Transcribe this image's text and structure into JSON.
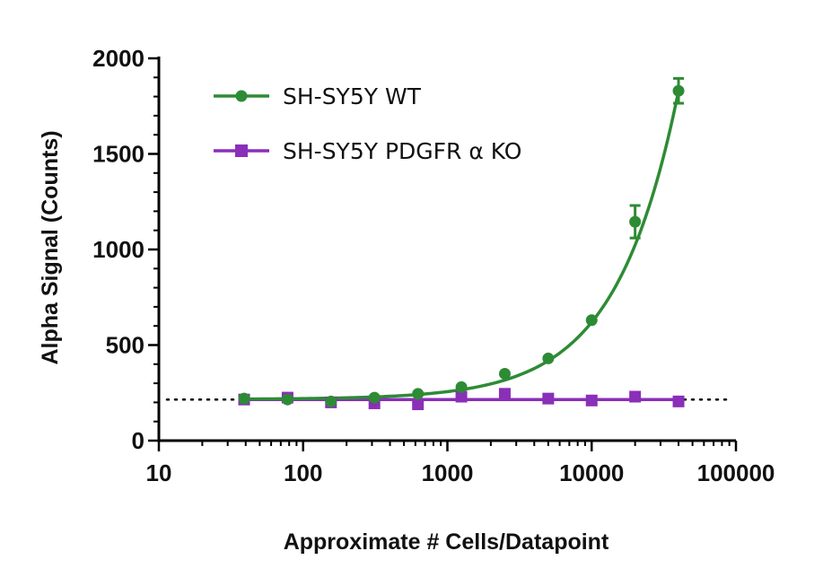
{
  "chart_data": {
    "type": "scatter",
    "title": "",
    "xlabel": "Approximate # Cells/Datapoint",
    "ylabel": "Alpha Signal (Counts)",
    "xscale": "log",
    "xlim": [
      10,
      100000
    ],
    "ylim": [
      0,
      2000
    ],
    "x_ticks": [
      10,
      100,
      1000,
      10000,
      100000
    ],
    "x_tick_labels": [
      "10",
      "100",
      "1000",
      "10000",
      "100000"
    ],
    "y_ticks": [
      0,
      500,
      1000,
      1500,
      2000
    ],
    "y_tick_labels": [
      "0",
      "500",
      "1000",
      "1500",
      "2000"
    ],
    "baseline_y": 215,
    "grid": false,
    "legend_position": "top-left",
    "series": [
      {
        "name": "SH-SY5Y WT",
        "color": "#2e8b35",
        "marker": "circle",
        "fit": "curve",
        "x": [
          39,
          78,
          156,
          312,
          625,
          1250,
          2500,
          5000,
          10000,
          20000,
          40000
        ],
        "y": [
          220,
          215,
          205,
          225,
          245,
          280,
          350,
          430,
          630,
          1145,
          1830
        ],
        "err": [
          0,
          0,
          0,
          0,
          0,
          0,
          0,
          0,
          0,
          85,
          65
        ]
      },
      {
        "name": "SH-SY5Y PDGFR α KO",
        "color": "#8a2fb8",
        "marker": "square",
        "fit": "line",
        "x": [
          39,
          78,
          156,
          312,
          625,
          1250,
          2500,
          5000,
          10000,
          20000,
          40000
        ],
        "y": [
          215,
          225,
          200,
          195,
          190,
          230,
          245,
          220,
          210,
          230,
          205
        ],
        "err": [
          0,
          0,
          0,
          0,
          0,
          0,
          0,
          0,
          0,
          0,
          0
        ]
      }
    ]
  }
}
